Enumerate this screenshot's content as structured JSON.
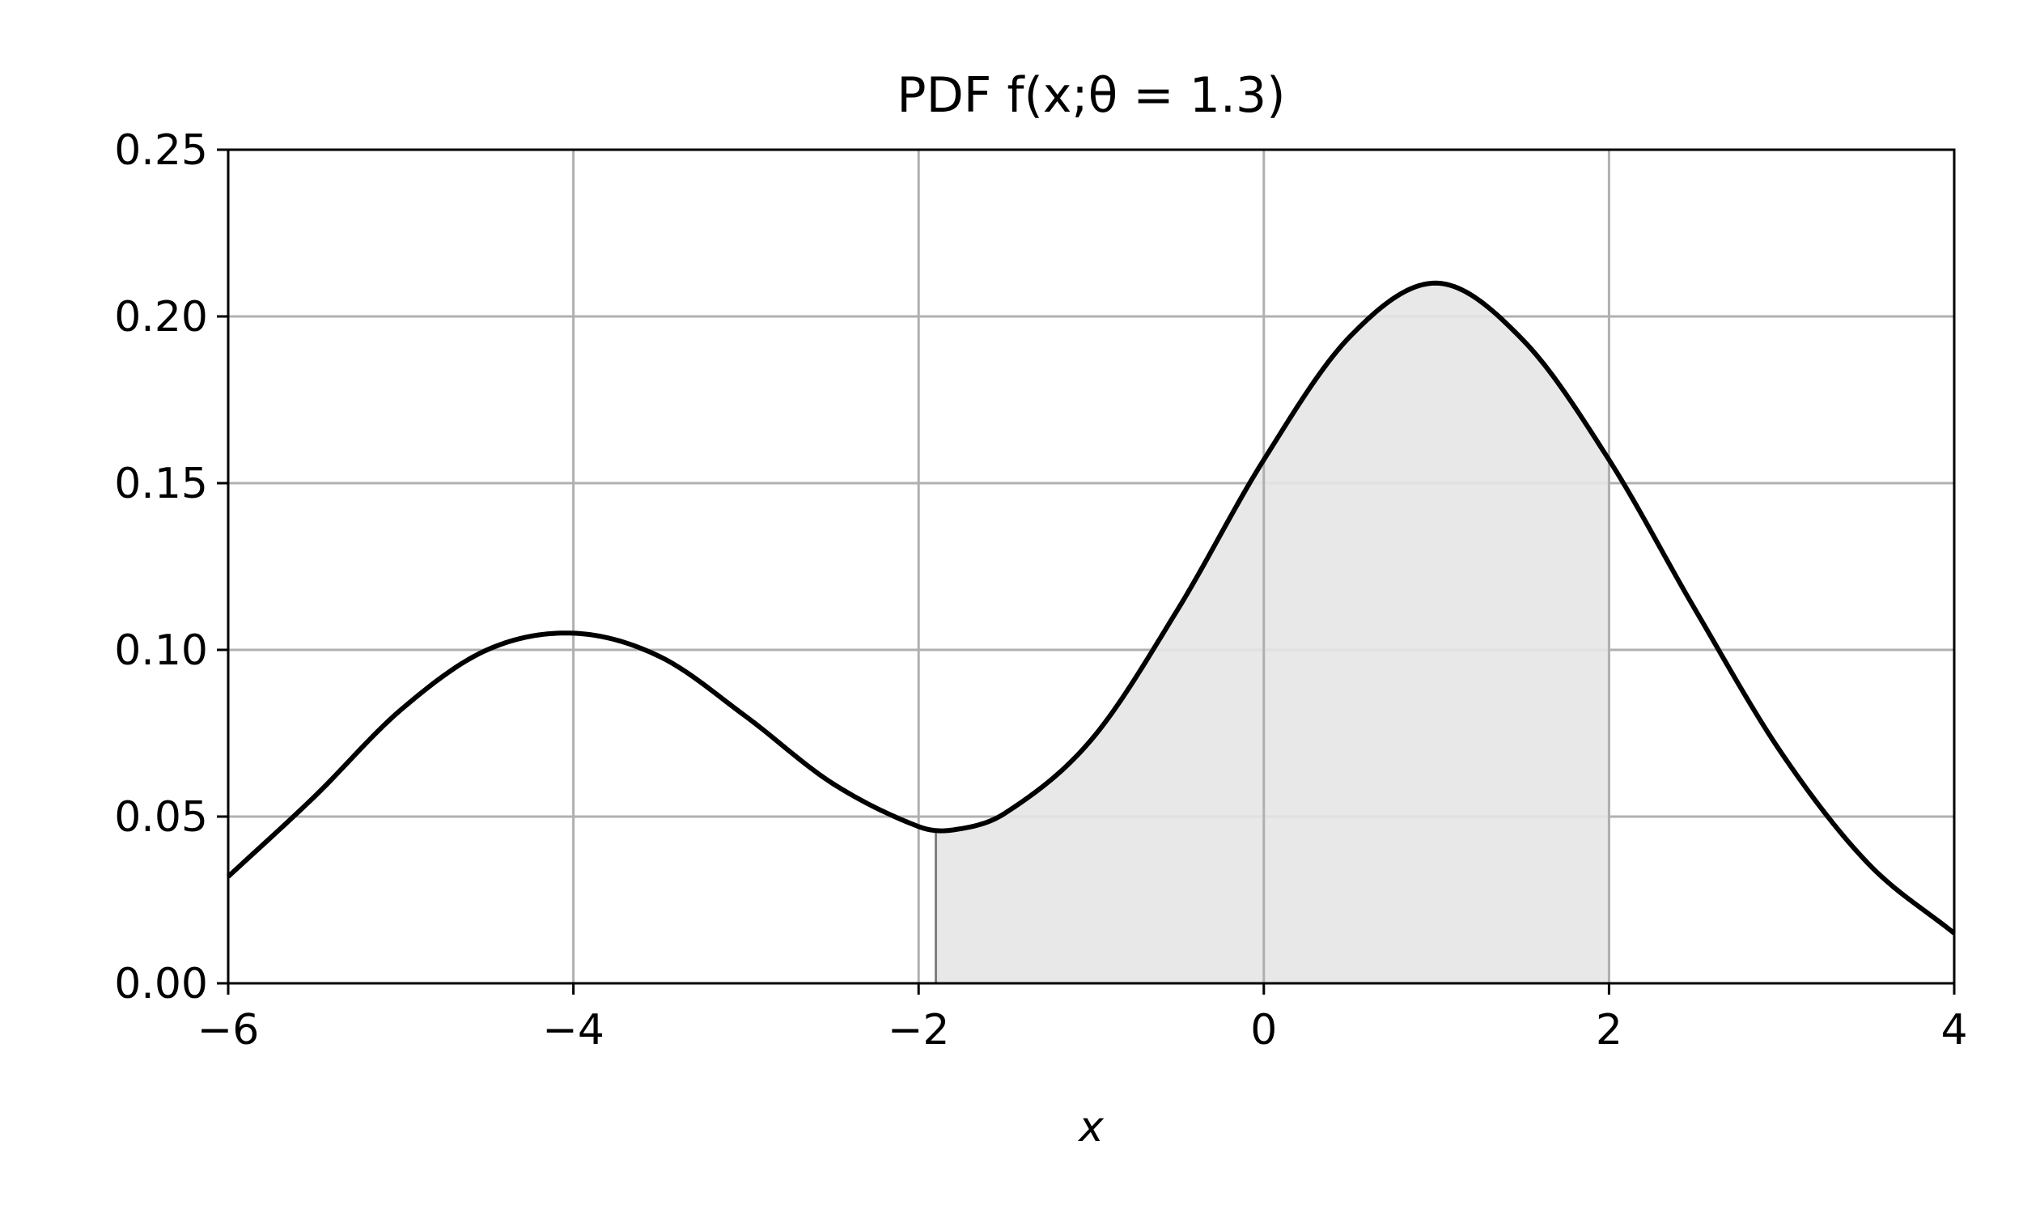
{
  "chart_data": {
    "type": "area",
    "title": "PDF f(x;θ = 1.3)",
    "xlabel": "x",
    "ylabel": "",
    "xlim": [
      -6,
      4
    ],
    "ylim": [
      0,
      0.25
    ],
    "xticks": [
      -6,
      -4,
      -2,
      0,
      2,
      4
    ],
    "xtick_labels": [
      "−6",
      "−4",
      "−2",
      "0",
      "2",
      "4"
    ],
    "yticks": [
      0.0,
      0.05,
      0.1,
      0.15,
      0.2,
      0.25
    ],
    "ytick_labels": [
      "0.00",
      "0.05",
      "0.10",
      "0.15",
      "0.20",
      "0.25"
    ],
    "grid": true,
    "legend": "none",
    "curve": {
      "x": [
        -6,
        -5.5,
        -5,
        -4.5,
        -4,
        -3.5,
        -3,
        -2.5,
        -2,
        -1.8,
        -1.5,
        -1,
        -0.5,
        0,
        0.5,
        1,
        1.5,
        2,
        2.5,
        3,
        3.5,
        4
      ],
      "y": [
        0.032,
        0.056,
        0.082,
        0.1,
        0.105,
        0.098,
        0.08,
        0.06,
        0.047,
        0.046,
        0.051,
        0.073,
        0.112,
        0.157,
        0.194,
        0.21,
        0.193,
        0.157,
        0.112,
        0.069,
        0.036,
        0.015
      ]
    },
    "shaded_region": {
      "x_from": -1.9,
      "x_to": 2.0
    },
    "colors": {
      "curve": "#000000",
      "fill": "#e5e5e5",
      "grid": "#b0b0b0",
      "fill_edge": "#808080"
    }
  }
}
